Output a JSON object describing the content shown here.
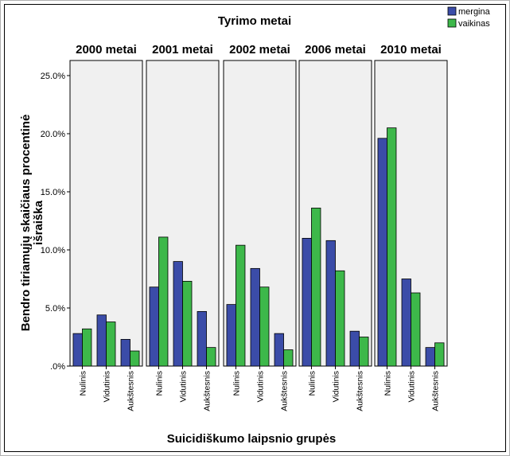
{
  "chart_data": {
    "type": "bar",
    "title": "Tyrimo metai",
    "xlabel": "Suicidiškumo laipsnio grupės",
    "ylabel": "Bendro tiriamųjų skaičiaus procentinė išraiška",
    "ylim": [
      0,
      26.3
    ],
    "yticks": [
      ".0%",
      "5.0%",
      "10.0%",
      "15.0%",
      "20.0%",
      "25.0%"
    ],
    "categories": [
      "Nulinis",
      "Vidutinis",
      "Aukštesnis"
    ],
    "panels": [
      {
        "label": "2000 metai",
        "series": [
          {
            "name": "mergina",
            "values": [
              2.8,
              4.4,
              2.3
            ]
          },
          {
            "name": "vaikinas",
            "values": [
              3.2,
              3.8,
              1.3
            ]
          }
        ]
      },
      {
        "label": "2001 metai",
        "series": [
          {
            "name": "mergina",
            "values": [
              6.8,
              9.0,
              4.7
            ]
          },
          {
            "name": "vaikinas",
            "values": [
              11.1,
              7.3,
              1.6
            ]
          }
        ]
      },
      {
        "label": "2002 metai",
        "series": [
          {
            "name": "mergina",
            "values": [
              5.3,
              8.4,
              2.8
            ]
          },
          {
            "name": "vaikinas",
            "values": [
              10.4,
              6.8,
              1.4
            ]
          }
        ]
      },
      {
        "label": "2006 metai",
        "series": [
          {
            "name": "mergina",
            "values": [
              11.0,
              10.8,
              3.0
            ]
          },
          {
            "name": "vaikinas",
            "values": [
              13.6,
              8.2,
              2.5
            ]
          }
        ]
      },
      {
        "label": "2010 metai",
        "series": [
          {
            "name": "mergina",
            "values": [
              19.6,
              7.5,
              1.6
            ]
          },
          {
            "name": "vaikinas",
            "values": [
              20.5,
              6.3,
              2.0
            ]
          }
        ]
      }
    ],
    "legend": {
      "placement": "top-right",
      "items": [
        {
          "name": "mergina",
          "color": "#3b4ca8"
        },
        {
          "name": "vaikinas",
          "color": "#3db84a"
        }
      ]
    },
    "panel_background": "#f0f0f0",
    "grid": false
  }
}
